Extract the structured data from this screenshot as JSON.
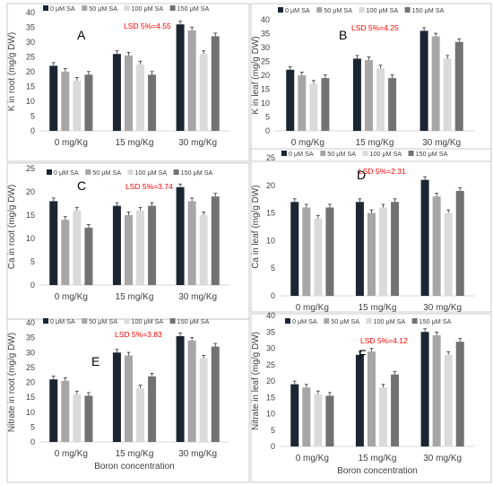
{
  "colors": {
    "c0": "#1c2633",
    "c1": "#a6a6a6",
    "c2": "#dadada",
    "c3": "#727272",
    "lsd": "#ff0000",
    "frame": "#bfbfbf"
  },
  "chart_data": [
    {
      "type": "bar",
      "letter": "A",
      "lsd": "LSD 5%=4.55",
      "ylabel": "K in root (mg/g DW)",
      "xlabel": "",
      "ylim": [
        0,
        40
      ],
      "yticks": [
        0,
        5,
        10,
        15,
        20,
        25,
        30,
        35,
        40
      ],
      "categories": [
        "0 mg/Kg",
        "15 mg/Kg",
        "30 mg/Kg"
      ],
      "series": [
        {
          "name": "0 μM SA",
          "values": [
            22,
            26,
            36
          ]
        },
        {
          "name": "50 μM SA",
          "values": [
            20,
            25.5,
            34
          ]
        },
        {
          "name": "100 μM SA",
          "values": [
            17,
            22.5,
            26
          ]
        },
        {
          "name": "150 μM SA",
          "values": [
            19,
            19,
            32
          ]
        }
      ]
    },
    {
      "type": "bar",
      "letter": "B",
      "lsd": "LSD 5%=4.25",
      "ylabel": "K in leaf (mg/g DW)",
      "xlabel": "",
      "ylim": [
        0,
        40
      ],
      "yticks": [
        0,
        5,
        10,
        15,
        20,
        25,
        30,
        35,
        40
      ],
      "categories": [
        "0 mg/Kg",
        "15 mg/Kg",
        "30 mg/Kg"
      ],
      "series": [
        {
          "name": "0 μM SA",
          "values": [
            22,
            26,
            36
          ]
        },
        {
          "name": "50 μM SA",
          "values": [
            20,
            25.5,
            34
          ]
        },
        {
          "name": "100 μM SA",
          "values": [
            17,
            22.5,
            26
          ]
        },
        {
          "name": "150 μM SA",
          "values": [
            19,
            19,
            32
          ]
        }
      ]
    },
    {
      "type": "bar",
      "letter": "C",
      "lsd": "LSD 5%=3.74",
      "ylabel": "Ca in root (mg/g DW)",
      "xlabel": "",
      "ylim": [
        0,
        25
      ],
      "yticks": [
        0,
        5,
        10,
        15,
        20,
        25
      ],
      "categories": [
        "0 mg/Kg",
        "15 mg/Kg",
        "30 mg/Kg"
      ],
      "series": [
        {
          "name": "0 μM SA",
          "values": [
            18,
            17,
            21
          ]
        },
        {
          "name": "50 μM SA",
          "values": [
            14,
            15,
            18
          ]
        },
        {
          "name": "100 μM SA",
          "values": [
            16,
            16,
            15
          ]
        },
        {
          "name": "150 μM SA",
          "values": [
            12.3,
            17,
            19
          ]
        }
      ]
    },
    {
      "type": "bar",
      "letter": "D",
      "lsd": "LSD 5%=2.31",
      "ylabel": "Ca in leaf (mg/g DW)",
      "xlabel": "",
      "ylim": [
        0,
        25
      ],
      "yticks": [
        0,
        5,
        10,
        15,
        20,
        25
      ],
      "categories": [
        "0 mg/Kg",
        "15 mg/Kg",
        "30 mg/Kg"
      ],
      "series": [
        {
          "name": "0 μM SA",
          "values": [
            17,
            17,
            21
          ]
        },
        {
          "name": "50 μM SA",
          "values": [
            16,
            15,
            18
          ]
        },
        {
          "name": "100 μM SA",
          "values": [
            14,
            16,
            15
          ]
        },
        {
          "name": "150 μM SA",
          "values": [
            16,
            17,
            19
          ]
        }
      ]
    },
    {
      "type": "bar",
      "letter": "E",
      "lsd": "LSD 5%=3.83",
      "ylabel": "Nitrate in root (mg/g DW)",
      "xlabel": "Boron concentration",
      "ylim": [
        0,
        40
      ],
      "yticks": [
        0,
        5,
        10,
        15,
        20,
        25,
        30,
        35,
        40
      ],
      "categories": [
        "0 mg/Kg",
        "15 mg/Kg",
        "30 mg/Kg"
      ],
      "series": [
        {
          "name": "0 μM SA",
          "values": [
            21,
            30,
            35.5
          ]
        },
        {
          "name": "50 μM SA",
          "values": [
            20.5,
            29,
            34
          ]
        },
        {
          "name": "100 μM SA",
          "values": [
            16,
            18,
            28
          ]
        },
        {
          "name": "150 μM SA",
          "values": [
            15.5,
            22,
            32
          ]
        }
      ]
    },
    {
      "type": "bar",
      "letter": "F",
      "lsd": "LSD 5%=4.12",
      "ylabel": "Nitrate in leaf (mg/g DW)",
      "xlabel": "Boron concentration",
      "ylim": [
        0,
        40
      ],
      "yticks": [
        0,
        5,
        10,
        15,
        20,
        25,
        30,
        35,
        40
      ],
      "categories": [
        "0 mg/Kg",
        "15 mg/Kg",
        "30 mg/Kg"
      ],
      "series": [
        {
          "name": "0 μM SA",
          "values": [
            19,
            28,
            35
          ]
        },
        {
          "name": "50 μM SA",
          "values": [
            18,
            29,
            34
          ]
        },
        {
          "name": "100 μM SA",
          "values": [
            16,
            18,
            28
          ]
        },
        {
          "name": "150 μM SA",
          "values": [
            15.5,
            22,
            32
          ]
        }
      ]
    }
  ]
}
